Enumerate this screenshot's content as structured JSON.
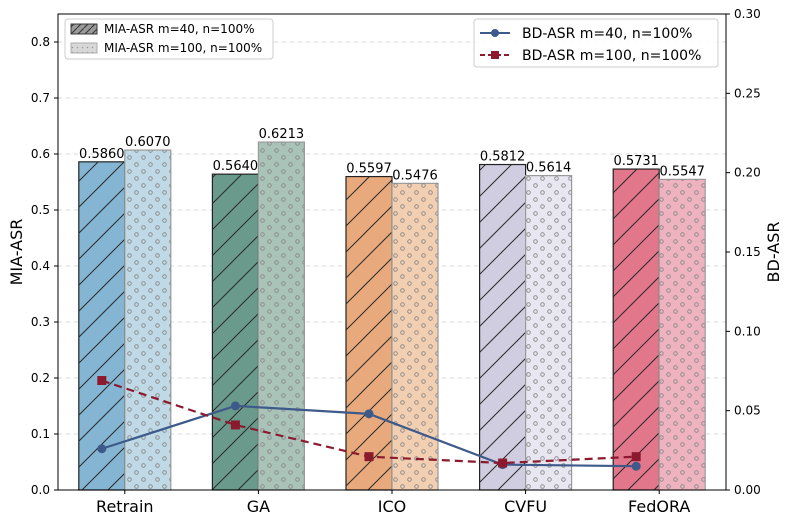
{
  "chart_data": {
    "type": "bar",
    "categories": [
      "Retrain",
      "GA",
      "ICO",
      "CVFU",
      "FedORA"
    ],
    "bar_colors": [
      "#84b5d3",
      "#6a9a8c",
      "#e8aa7d",
      "#d0cde0",
      "#e2768a"
    ],
    "bar_light_colors": [
      "#bfd9e7",
      "#a9c3b8",
      "#f3cfb2",
      "#e8e6f1",
      "#efb3c0"
    ],
    "bar_series": [
      {
        "name": "MIA-ASR m=40, n=100%",
        "values": [
          0.586,
          0.564,
          0.5597,
          0.5812,
          0.5731
        ],
        "labels": [
          "0.5860",
          "0.5640",
          "0.5597",
          "0.5812",
          "0.5731"
        ]
      },
      {
        "name": "MIA-ASR m=100, n=100%",
        "values": [
          0.607,
          0.6213,
          0.5476,
          0.5614,
          0.5547
        ],
        "labels": [
          "0.6070",
          "0.6213",
          "0.5476",
          "0.5614",
          "0.5547"
        ]
      }
    ],
    "line_series": [
      {
        "name": "BD-ASR m=40, n=100%",
        "values": [
          0.026,
          0.053,
          0.048,
          0.016,
          0.015
        ],
        "color": "#3e5a8a"
      },
      {
        "name": "BD-ASR m=100, n=100%",
        "values": [
          0.069,
          0.041,
          0.021,
          0.017,
          0.021
        ],
        "color": "#8b1a2e"
      }
    ],
    "ylabel": "MIA-ASR",
    "y2label": "BD-ASR",
    "ylim": [
      0,
      0.85
    ],
    "y2lim": [
      0,
      0.3
    ],
    "yticks": [
      "0.0",
      "0.1",
      "0.2",
      "0.3",
      "0.4",
      "0.5",
      "0.6",
      "0.7",
      "0.8"
    ],
    "y2ticks": [
      "0.00",
      "0.05",
      "0.10",
      "0.15",
      "0.20",
      "0.25",
      "0.30"
    ],
    "grid": "horizontal dashed",
    "legend_bars_position": "top-left",
    "legend_lines_position": "top-right"
  }
}
